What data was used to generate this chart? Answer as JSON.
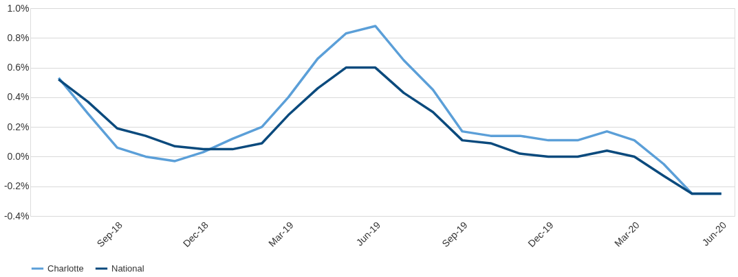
{
  "chart_data": {
    "type": "line",
    "x": [
      "2018-07",
      "2018-08",
      "2018-09",
      "2018-10",
      "2018-11",
      "2018-12",
      "2019-01",
      "2019-02",
      "2019-03",
      "2019-04",
      "2019-05",
      "2019-06",
      "2019-07",
      "2019-08",
      "2019-09",
      "2019-10",
      "2019-11",
      "2019-12",
      "2020-01",
      "2020-02",
      "2020-03",
      "2020-04",
      "2020-05",
      "2020-06"
    ],
    "series": [
      {
        "name": "Charlotte",
        "color": "#5b9fd8",
        "values": [
          0.53,
          0.29,
          0.06,
          0.0,
          -0.03,
          0.03,
          0.12,
          0.2,
          0.4,
          0.66,
          0.83,
          0.88,
          0.65,
          0.45,
          0.17,
          0.14,
          0.14,
          0.11,
          0.11,
          0.17,
          0.11,
          -0.05,
          -0.25,
          -0.25
        ]
      },
      {
        "name": "National",
        "color": "#0b4a7d",
        "values": [
          0.52,
          0.37,
          0.19,
          0.14,
          0.07,
          0.05,
          0.05,
          0.09,
          0.28,
          0.46,
          0.6,
          0.6,
          0.43,
          0.3,
          0.11,
          0.09,
          0.02,
          0.0,
          0.0,
          0.04,
          0.0,
          -0.13,
          -0.25,
          -0.25
        ]
      }
    ],
    "xlim": [
      "2018-06",
      "2020-06-15"
    ],
    "xticks": [
      {
        "value": "2018-09",
        "label": "Sep-18"
      },
      {
        "value": "2018-12",
        "label": "Dec-18"
      },
      {
        "value": "2019-03",
        "label": "Mar-19"
      },
      {
        "value": "2019-06",
        "label": "Jun-19"
      },
      {
        "value": "2019-09",
        "label": "Sep-19"
      },
      {
        "value": "2019-12",
        "label": "Dec-19"
      },
      {
        "value": "2020-03",
        "label": "Mar-20"
      },
      {
        "value": "2020-06",
        "label": "Jun-20"
      }
    ],
    "ylim": [
      -0.4,
      1.0
    ],
    "yticks": [
      {
        "value": -0.4,
        "label": "-0.4%"
      },
      {
        "value": -0.2,
        "label": "-0.2%"
      },
      {
        "value": 0.0,
        "label": "0.0%"
      },
      {
        "value": 0.2,
        "label": "0.2%"
      },
      {
        "value": 0.4,
        "label": "0.4%"
      },
      {
        "value": 0.6,
        "label": "0.6%"
      },
      {
        "value": 0.8,
        "label": "0.8%"
      },
      {
        "value": 1.0,
        "label": "1.0%"
      }
    ],
    "grid": "y",
    "legend": "bottom",
    "marker": "none",
    "line_style": "solid"
  }
}
